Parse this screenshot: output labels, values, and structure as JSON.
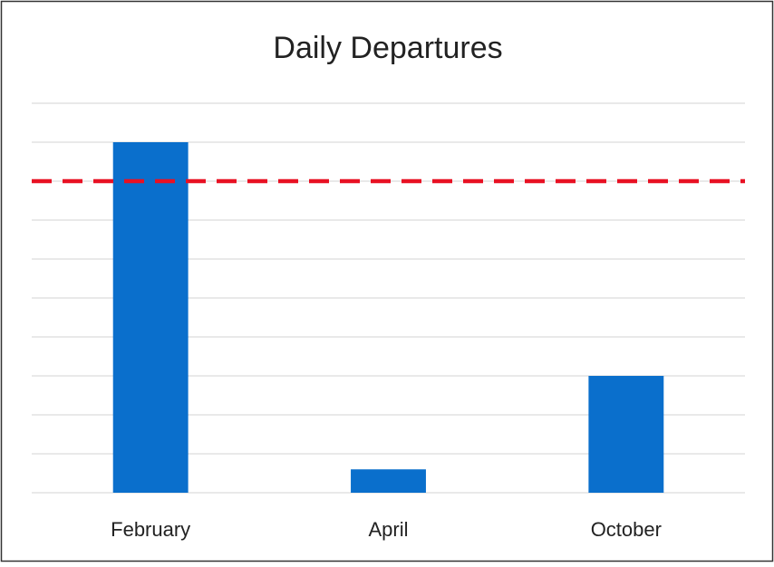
{
  "chart_data": {
    "type": "bar",
    "title": "Daily Departures",
    "categories": [
      "February",
      "April",
      "October"
    ],
    "values": [
      9,
      0.6,
      3
    ],
    "color": "#0a6fcc",
    "ylim": [
      0,
      10
    ],
    "yticks": [
      0,
      1,
      2,
      3,
      4,
      5,
      6,
      7,
      8,
      9,
      10
    ],
    "grid": true,
    "reference_line": {
      "value": 8,
      "color": "#e81123",
      "style": "dashed"
    }
  }
}
